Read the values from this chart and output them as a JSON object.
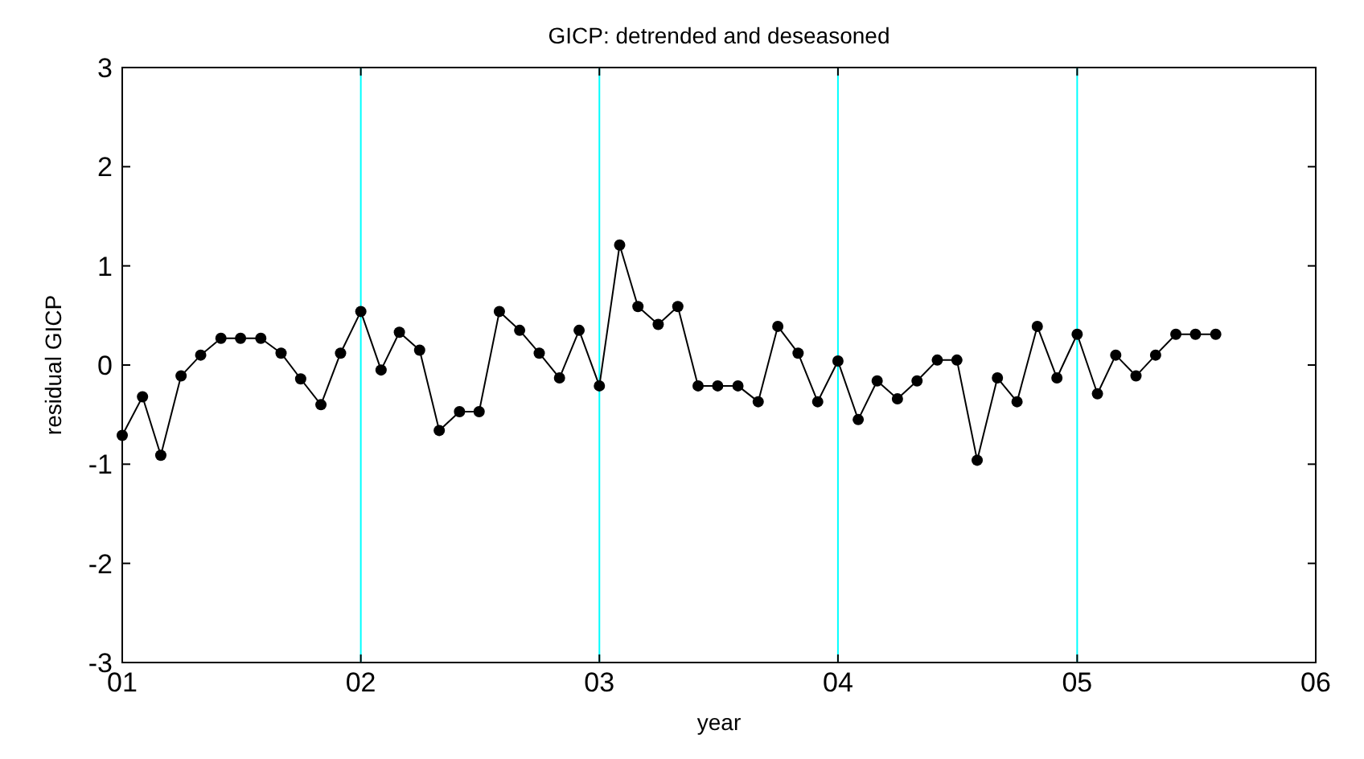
{
  "chart_data": {
    "type": "line",
    "title": "GICP: detrended and deseasoned",
    "xlabel": "year",
    "ylabel": "residual GICP",
    "x": [
      "2001-01",
      "2001-02",
      "2001-03",
      "2001-04",
      "2001-05",
      "2001-06",
      "2001-07",
      "2001-08",
      "2001-09",
      "2001-10",
      "2001-11",
      "2001-12",
      "2002-01",
      "2002-02",
      "2002-03",
      "2002-04",
      "2002-05",
      "2002-06",
      "2002-07",
      "2002-08",
      "2002-09",
      "2002-10",
      "2002-11",
      "2002-12",
      "2003-01",
      "2003-02",
      "2003-03",
      "2003-04",
      "2003-05",
      "2003-06",
      "2003-07",
      "2003-08",
      "2003-09",
      "2003-10",
      "2003-11",
      "2003-12",
      "2004-01",
      "2004-02",
      "2004-03",
      "2004-04",
      "2004-05",
      "2004-06",
      "2004-07",
      "2004-08",
      "2004-09",
      "2004-10",
      "2004-11",
      "2004-12",
      "2005-01",
      "2005-02",
      "2005-03",
      "2005-04",
      "2005-05",
      "2005-06",
      "2005-07",
      "2005-08"
    ],
    "series": [
      {
        "color": "#000000",
        "values": [
          -0.71,
          -0.32,
          -0.91,
          -0.11,
          0.1,
          0.27,
          0.27,
          0.27,
          0.12,
          -0.14,
          -0.4,
          0.12,
          0.54,
          -0.05,
          0.33,
          0.15,
          -0.66,
          -0.47,
          -0.47,
          0.54,
          0.35,
          0.12,
          -0.13,
          0.35,
          -0.21,
          1.21,
          0.59,
          0.41,
          0.59,
          -0.21,
          -0.21,
          -0.21,
          -0.37,
          0.39,
          0.12,
          -0.37,
          0.04,
          -0.55,
          -0.16,
          -0.34,
          -0.16,
          0.05,
          0.05,
          -0.96,
          -0.13,
          -0.37,
          0.39,
          -0.13,
          0.31,
          -0.29,
          0.1,
          -0.11,
          0.1,
          0.31,
          0.31,
          0.31
        ]
      }
    ],
    "xlim": [
      "2001-01",
      "2006-01"
    ],
    "xticks": [
      {
        "value": "2001-01",
        "label": "01"
      },
      {
        "value": "2002-01",
        "label": "02"
      },
      {
        "value": "2003-01",
        "label": "03"
      },
      {
        "value": "2004-01",
        "label": "04"
      },
      {
        "value": "2005-01",
        "label": "05"
      },
      {
        "value": "2006-01",
        "label": "06"
      }
    ],
    "ylim": [
      -3,
      3
    ],
    "yticks": [
      -3,
      -2,
      -1,
      0,
      1,
      2,
      3
    ],
    "ref_lines": [
      {
        "axis": "x",
        "value": "2002-01",
        "color": "#00ffff"
      },
      {
        "axis": "x",
        "value": "2003-01",
        "color": "#00ffff"
      },
      {
        "axis": "x",
        "value": "2004-01",
        "color": "#00ffff"
      },
      {
        "axis": "x",
        "value": "2005-01",
        "color": "#00ffff"
      }
    ],
    "grid": false,
    "marker": "circle",
    "line_style": "solid"
  }
}
